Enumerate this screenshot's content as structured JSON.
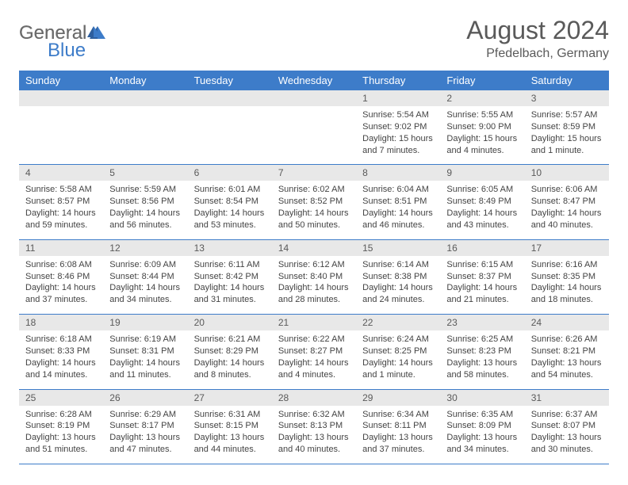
{
  "logo": {
    "part1": "General",
    "part2": "Blue"
  },
  "title": "August 2024",
  "location": "Pfedelbach, Germany",
  "day_headers": [
    "Sunday",
    "Monday",
    "Tuesday",
    "Wednesday",
    "Thursday",
    "Friday",
    "Saturday"
  ],
  "colors": {
    "header_bg": "#3d7cc9",
    "daynum_bg": "#e8e8e8",
    "text": "#5a5a5a",
    "logo_general": "#6b6b6b",
    "logo_blue": "#3d7cc9"
  },
  "weeks": [
    [
      null,
      null,
      null,
      null,
      {
        "num": "1",
        "sunrise": "Sunrise: 5:54 AM",
        "sunset": "Sunset: 9:02 PM",
        "daylight": "Daylight: 15 hours and 7 minutes."
      },
      {
        "num": "2",
        "sunrise": "Sunrise: 5:55 AM",
        "sunset": "Sunset: 9:00 PM",
        "daylight": "Daylight: 15 hours and 4 minutes."
      },
      {
        "num": "3",
        "sunrise": "Sunrise: 5:57 AM",
        "sunset": "Sunset: 8:59 PM",
        "daylight": "Daylight: 15 hours and 1 minute."
      }
    ],
    [
      {
        "num": "4",
        "sunrise": "Sunrise: 5:58 AM",
        "sunset": "Sunset: 8:57 PM",
        "daylight": "Daylight: 14 hours and 59 minutes."
      },
      {
        "num": "5",
        "sunrise": "Sunrise: 5:59 AM",
        "sunset": "Sunset: 8:56 PM",
        "daylight": "Daylight: 14 hours and 56 minutes."
      },
      {
        "num": "6",
        "sunrise": "Sunrise: 6:01 AM",
        "sunset": "Sunset: 8:54 PM",
        "daylight": "Daylight: 14 hours and 53 minutes."
      },
      {
        "num": "7",
        "sunrise": "Sunrise: 6:02 AM",
        "sunset": "Sunset: 8:52 PM",
        "daylight": "Daylight: 14 hours and 50 minutes."
      },
      {
        "num": "8",
        "sunrise": "Sunrise: 6:04 AM",
        "sunset": "Sunset: 8:51 PM",
        "daylight": "Daylight: 14 hours and 46 minutes."
      },
      {
        "num": "9",
        "sunrise": "Sunrise: 6:05 AM",
        "sunset": "Sunset: 8:49 PM",
        "daylight": "Daylight: 14 hours and 43 minutes."
      },
      {
        "num": "10",
        "sunrise": "Sunrise: 6:06 AM",
        "sunset": "Sunset: 8:47 PM",
        "daylight": "Daylight: 14 hours and 40 minutes."
      }
    ],
    [
      {
        "num": "11",
        "sunrise": "Sunrise: 6:08 AM",
        "sunset": "Sunset: 8:46 PM",
        "daylight": "Daylight: 14 hours and 37 minutes."
      },
      {
        "num": "12",
        "sunrise": "Sunrise: 6:09 AM",
        "sunset": "Sunset: 8:44 PM",
        "daylight": "Daylight: 14 hours and 34 minutes."
      },
      {
        "num": "13",
        "sunrise": "Sunrise: 6:11 AM",
        "sunset": "Sunset: 8:42 PM",
        "daylight": "Daylight: 14 hours and 31 minutes."
      },
      {
        "num": "14",
        "sunrise": "Sunrise: 6:12 AM",
        "sunset": "Sunset: 8:40 PM",
        "daylight": "Daylight: 14 hours and 28 minutes."
      },
      {
        "num": "15",
        "sunrise": "Sunrise: 6:14 AM",
        "sunset": "Sunset: 8:38 PM",
        "daylight": "Daylight: 14 hours and 24 minutes."
      },
      {
        "num": "16",
        "sunrise": "Sunrise: 6:15 AM",
        "sunset": "Sunset: 8:37 PM",
        "daylight": "Daylight: 14 hours and 21 minutes."
      },
      {
        "num": "17",
        "sunrise": "Sunrise: 6:16 AM",
        "sunset": "Sunset: 8:35 PM",
        "daylight": "Daylight: 14 hours and 18 minutes."
      }
    ],
    [
      {
        "num": "18",
        "sunrise": "Sunrise: 6:18 AM",
        "sunset": "Sunset: 8:33 PM",
        "daylight": "Daylight: 14 hours and 14 minutes."
      },
      {
        "num": "19",
        "sunrise": "Sunrise: 6:19 AM",
        "sunset": "Sunset: 8:31 PM",
        "daylight": "Daylight: 14 hours and 11 minutes."
      },
      {
        "num": "20",
        "sunrise": "Sunrise: 6:21 AM",
        "sunset": "Sunset: 8:29 PM",
        "daylight": "Daylight: 14 hours and 8 minutes."
      },
      {
        "num": "21",
        "sunrise": "Sunrise: 6:22 AM",
        "sunset": "Sunset: 8:27 PM",
        "daylight": "Daylight: 14 hours and 4 minutes."
      },
      {
        "num": "22",
        "sunrise": "Sunrise: 6:24 AM",
        "sunset": "Sunset: 8:25 PM",
        "daylight": "Daylight: 14 hours and 1 minute."
      },
      {
        "num": "23",
        "sunrise": "Sunrise: 6:25 AM",
        "sunset": "Sunset: 8:23 PM",
        "daylight": "Daylight: 13 hours and 58 minutes."
      },
      {
        "num": "24",
        "sunrise": "Sunrise: 6:26 AM",
        "sunset": "Sunset: 8:21 PM",
        "daylight": "Daylight: 13 hours and 54 minutes."
      }
    ],
    [
      {
        "num": "25",
        "sunrise": "Sunrise: 6:28 AM",
        "sunset": "Sunset: 8:19 PM",
        "daylight": "Daylight: 13 hours and 51 minutes."
      },
      {
        "num": "26",
        "sunrise": "Sunrise: 6:29 AM",
        "sunset": "Sunset: 8:17 PM",
        "daylight": "Daylight: 13 hours and 47 minutes."
      },
      {
        "num": "27",
        "sunrise": "Sunrise: 6:31 AM",
        "sunset": "Sunset: 8:15 PM",
        "daylight": "Daylight: 13 hours and 44 minutes."
      },
      {
        "num": "28",
        "sunrise": "Sunrise: 6:32 AM",
        "sunset": "Sunset: 8:13 PM",
        "daylight": "Daylight: 13 hours and 40 minutes."
      },
      {
        "num": "29",
        "sunrise": "Sunrise: 6:34 AM",
        "sunset": "Sunset: 8:11 PM",
        "daylight": "Daylight: 13 hours and 37 minutes."
      },
      {
        "num": "30",
        "sunrise": "Sunrise: 6:35 AM",
        "sunset": "Sunset: 8:09 PM",
        "daylight": "Daylight: 13 hours and 34 minutes."
      },
      {
        "num": "31",
        "sunrise": "Sunrise: 6:37 AM",
        "sunset": "Sunset: 8:07 PM",
        "daylight": "Daylight: 13 hours and 30 minutes."
      }
    ]
  ]
}
